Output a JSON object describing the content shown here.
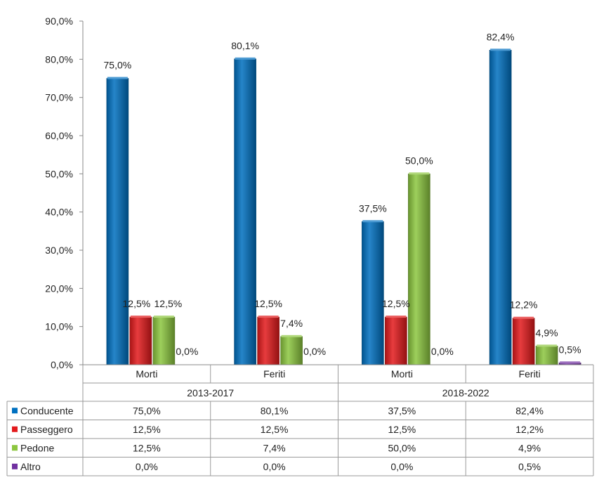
{
  "chart_data": {
    "type": "bar",
    "title": "",
    "xlabel": "",
    "ylabel": "",
    "ylim": [
      0,
      90
    ],
    "yticks": [
      "0,0%",
      "10,0%",
      "20,0%",
      "30,0%",
      "40,0%",
      "50,0%",
      "60,0%",
      "70,0%",
      "80,0%",
      "90,0%"
    ],
    "groups": [
      {
        "label": "2013-2017",
        "categories": [
          "Morti",
          "Feriti"
        ]
      },
      {
        "label": "2018-2022",
        "categories": [
          "Morti",
          "Feriti"
        ]
      }
    ],
    "categories": [
      "Morti",
      "Feriti",
      "Morti",
      "Feriti"
    ],
    "series": [
      {
        "name": "Conducente",
        "color": "#0070C0",
        "values": [
          75.0,
          80.1,
          37.5,
          82.4
        ],
        "labels": [
          "75,0%",
          "80,1%",
          "37,5%",
          "82,4%"
        ]
      },
      {
        "name": "Passeggero",
        "color": "#E31A1C",
        "values": [
          12.5,
          12.5,
          12.5,
          12.2
        ],
        "labels": [
          "12,5%",
          "12,5%",
          "12,5%",
          "12,2%"
        ]
      },
      {
        "name": "Pedone",
        "color": "#8CC63F",
        "values": [
          12.5,
          7.4,
          50.0,
          4.9
        ],
        "labels": [
          "12,5%",
          "7,4%",
          "50,0%",
          "4,9%"
        ]
      },
      {
        "name": "Altro",
        "color": "#7030A0",
        "values": [
          0.0,
          0.0,
          0.0,
          0.5
        ],
        "labels": [
          "0,0%",
          "0,0%",
          "0,0%",
          "0,5%"
        ]
      }
    ],
    "grid": false,
    "legend": "data-table-below"
  }
}
